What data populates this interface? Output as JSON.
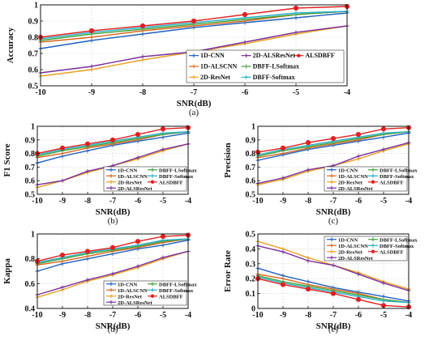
{
  "chart_data": [
    {
      "type": "line",
      "panel_label": "(a)",
      "xlabel": "SNR(dB)",
      "ylabel": "Accuracy",
      "x": [
        -10,
        -9,
        -8,
        -7,
        -6,
        -5,
        -4
      ],
      "xlim": [
        -10,
        -4
      ],
      "ylim": [
        0.5,
        1
      ],
      "yticks": [
        0.5,
        0.6,
        0.7,
        0.8,
        0.9,
        1
      ],
      "ytick_labels": [
        "0.5",
        "0.6",
        "0.7",
        "0.8",
        "0.9",
        "1"
      ],
      "grid": true,
      "legend_position": "lower-right",
      "series": [
        {
          "name": "1D-CNN",
          "color": "#1f5fbf",
          "marker": "plus",
          "values": [
            0.73,
            0.78,
            0.82,
            0.86,
            0.89,
            0.92,
            0.95
          ]
        },
        {
          "name": "1D-ALSCNN",
          "color": "#d9641e",
          "marker": "plus",
          "values": [
            0.77,
            0.8,
            0.84,
            0.87,
            0.9,
            0.94,
            0.96
          ]
        },
        {
          "name": "2D-ResNet",
          "color": "#e8a020",
          "marker": "plus",
          "values": [
            0.56,
            0.6,
            0.66,
            0.71,
            0.76,
            0.82,
            0.87
          ]
        },
        {
          "name": "2D-ALSResNet",
          "color": "#7a2f9e",
          "marker": "plus",
          "values": [
            0.58,
            0.62,
            0.68,
            0.71,
            0.77,
            0.83,
            0.87
          ]
        },
        {
          "name": "DBFF-LSoftmax",
          "color": "#3fa23a",
          "marker": "plus",
          "values": [
            0.78,
            0.82,
            0.85,
            0.88,
            0.91,
            0.94,
            0.96
          ]
        },
        {
          "name": "DBFF-Softmax",
          "color": "#2ab0c8",
          "marker": "plus",
          "values": [
            0.79,
            0.83,
            0.86,
            0.89,
            0.92,
            0.95,
            0.96
          ]
        },
        {
          "name": "ALSDBFF",
          "color": "#e02020",
          "marker": "dot",
          "values": [
            0.8,
            0.84,
            0.87,
            0.9,
            0.94,
            0.98,
            0.99
          ]
        }
      ]
    },
    {
      "type": "line",
      "panel_label": "(b)",
      "xlabel": "SNR(dB)",
      "ylabel": "F1 Score",
      "x": [
        -10,
        -9,
        -8,
        -7,
        -6,
        -5,
        -4
      ],
      "xlim": [
        -10,
        -4
      ],
      "ylim": [
        0.5,
        1
      ],
      "yticks": [
        0.5,
        0.6,
        0.7,
        0.8,
        0.9,
        1
      ],
      "ytick_labels": [
        "0.5",
        "0.6",
        "0.7",
        "0.8",
        "0.9",
        "1"
      ],
      "grid": true,
      "legend_position": "lower-right",
      "series": [
        {
          "name": "1D-CNN",
          "color": "#1f5fbf",
          "marker": "plus",
          "values": [
            0.73,
            0.78,
            0.82,
            0.86,
            0.89,
            0.92,
            0.95
          ]
        },
        {
          "name": "1D-ALSCNN",
          "color": "#d9641e",
          "marker": "plus",
          "values": [
            0.77,
            0.8,
            0.84,
            0.87,
            0.9,
            0.94,
            0.96
          ]
        },
        {
          "name": "2D-ResNet",
          "color": "#e8a020",
          "marker": "plus",
          "values": [
            0.55,
            0.6,
            0.66,
            0.71,
            0.76,
            0.82,
            0.87
          ]
        },
        {
          "name": "2D-ALSResNet",
          "color": "#7a2f9e",
          "marker": "plus",
          "values": [
            0.57,
            0.6,
            0.67,
            0.71,
            0.77,
            0.83,
            0.87
          ]
        },
        {
          "name": "DBFF-LSoftmax",
          "color": "#3fa23a",
          "marker": "plus",
          "values": [
            0.78,
            0.82,
            0.85,
            0.88,
            0.91,
            0.94,
            0.96
          ]
        },
        {
          "name": "DBFF-Softmax",
          "color": "#2ab0c8",
          "marker": "plus",
          "values": [
            0.79,
            0.83,
            0.86,
            0.89,
            0.92,
            0.95,
            0.96
          ]
        },
        {
          "name": "ALSDBFF",
          "color": "#e02020",
          "marker": "dot",
          "values": [
            0.8,
            0.84,
            0.87,
            0.9,
            0.94,
            0.98,
            0.99
          ]
        }
      ]
    },
    {
      "type": "line",
      "panel_label": "(c)",
      "xlabel": "SNR(dB)",
      "ylabel": "Precision",
      "x": [
        -10,
        -9,
        -8,
        -7,
        -6,
        -5,
        -4
      ],
      "xlim": [
        -10,
        -4
      ],
      "ylim": [
        0.5,
        1
      ],
      "yticks": [
        0.5,
        0.6,
        0.7,
        0.8,
        0.9,
        1
      ],
      "ytick_labels": [
        "0.5",
        "0.6",
        "0.7",
        "0.8",
        "0.9",
        "1"
      ],
      "grid": true,
      "legend_position": "lower-right",
      "series": [
        {
          "name": "1D-CNN",
          "color": "#1f5fbf",
          "marker": "plus",
          "values": [
            0.75,
            0.79,
            0.83,
            0.86,
            0.89,
            0.92,
            0.95
          ]
        },
        {
          "name": "1D-ALSCNN",
          "color": "#d9641e",
          "marker": "plus",
          "values": [
            0.77,
            0.8,
            0.84,
            0.87,
            0.9,
            0.94,
            0.96
          ]
        },
        {
          "name": "2D-ResNet",
          "color": "#e8a020",
          "marker": "plus",
          "values": [
            0.57,
            0.61,
            0.67,
            0.71,
            0.76,
            0.82,
            0.87
          ]
        },
        {
          "name": "2D-ALSResNet",
          "color": "#7a2f9e",
          "marker": "plus",
          "values": [
            0.58,
            0.62,
            0.68,
            0.71,
            0.78,
            0.83,
            0.88
          ]
        },
        {
          "name": "DBFF-LSoftmax",
          "color": "#3fa23a",
          "marker": "plus",
          "values": [
            0.78,
            0.82,
            0.85,
            0.88,
            0.91,
            0.94,
            0.96
          ]
        },
        {
          "name": "DBFF-Softmax",
          "color": "#2ab0c8",
          "marker": "plus",
          "values": [
            0.79,
            0.83,
            0.86,
            0.89,
            0.92,
            0.95,
            0.96
          ]
        },
        {
          "name": "ALSDBFF",
          "color": "#e02020",
          "marker": "dot",
          "values": [
            0.81,
            0.84,
            0.88,
            0.91,
            0.94,
            0.98,
            0.99
          ]
        }
      ]
    },
    {
      "type": "line",
      "panel_label": "(d)",
      "xlabel": "SNR(dB)",
      "ylabel": "Kappa",
      "x": [
        -10,
        -9,
        -8,
        -7,
        -6,
        -5,
        -4
      ],
      "xlim": [
        -10,
        -4
      ],
      "ylim": [
        0.4,
        1
      ],
      "yticks": [
        0.4,
        0.6,
        0.8,
        1
      ],
      "ytick_labels": [
        "0.4",
        "0.6",
        "0.8",
        "1"
      ],
      "grid": true,
      "legend_position": "lower-right",
      "series": [
        {
          "name": "1D-CNN",
          "color": "#1f5fbf",
          "marker": "plus",
          "values": [
            0.7,
            0.76,
            0.8,
            0.84,
            0.88,
            0.91,
            0.95
          ]
        },
        {
          "name": "1D-ALSCNN",
          "color": "#d9641e",
          "marker": "plus",
          "values": [
            0.75,
            0.78,
            0.82,
            0.86,
            0.89,
            0.93,
            0.96
          ]
        },
        {
          "name": "2D-ResNet",
          "color": "#e8a020",
          "marker": "plus",
          "values": [
            0.49,
            0.55,
            0.62,
            0.67,
            0.73,
            0.8,
            0.86
          ]
        },
        {
          "name": "2D-ALSResNet",
          "color": "#7a2f9e",
          "marker": "plus",
          "values": [
            0.51,
            0.57,
            0.63,
            0.68,
            0.74,
            0.81,
            0.86
          ]
        },
        {
          "name": "DBFF-LSoftmax",
          "color": "#3fa23a",
          "marker": "plus",
          "values": [
            0.76,
            0.8,
            0.84,
            0.87,
            0.9,
            0.94,
            0.96
          ]
        },
        {
          "name": "DBFF-Softmax",
          "color": "#2ab0c8",
          "marker": "plus",
          "values": [
            0.77,
            0.81,
            0.85,
            0.88,
            0.91,
            0.95,
            0.96
          ]
        },
        {
          "name": "ALSDBFF",
          "color": "#e02020",
          "marker": "dot",
          "values": [
            0.78,
            0.83,
            0.86,
            0.89,
            0.94,
            0.98,
            0.99
          ]
        }
      ]
    },
    {
      "type": "line",
      "panel_label": "(e)",
      "xlabel": "SNR(dB)",
      "ylabel": "Error Rate",
      "x": [
        -10,
        -9,
        -8,
        -7,
        -6,
        -5,
        -4
      ],
      "xlim": [
        -10,
        -4
      ],
      "ylim": [
        0,
        0.5
      ],
      "yticks": [
        0,
        0.1,
        0.2,
        0.3,
        0.4,
        0.5
      ],
      "ytick_labels": [
        "0",
        "0.1",
        "0.2",
        "0.3",
        "0.4",
        "0.5"
      ],
      "grid": true,
      "legend_position": "top-right",
      "series": [
        {
          "name": "1D-CNN",
          "color": "#1f5fbf",
          "marker": "plus",
          "values": [
            0.27,
            0.22,
            0.18,
            0.14,
            0.11,
            0.08,
            0.05
          ]
        },
        {
          "name": "1D-ALSCNN",
          "color": "#d9641e",
          "marker": "plus",
          "values": [
            0.23,
            0.2,
            0.16,
            0.13,
            0.1,
            0.06,
            0.04
          ]
        },
        {
          "name": "2D-ResNet",
          "color": "#e8a020",
          "marker": "plus",
          "values": [
            0.45,
            0.4,
            0.34,
            0.29,
            0.24,
            0.18,
            0.13
          ]
        },
        {
          "name": "2D-ALSResNet",
          "color": "#7a2f9e",
          "marker": "plus",
          "values": [
            0.42,
            0.38,
            0.32,
            0.29,
            0.23,
            0.17,
            0.12
          ]
        },
        {
          "name": "DBFF-LSoftmax",
          "color": "#3fa23a",
          "marker": "plus",
          "values": [
            0.22,
            0.18,
            0.15,
            0.12,
            0.09,
            0.06,
            0.04
          ]
        },
        {
          "name": "DBFF-Softmax",
          "color": "#2ab0c8",
          "marker": "plus",
          "values": [
            0.21,
            0.17,
            0.14,
            0.11,
            0.08,
            0.05,
            0.04
          ]
        },
        {
          "name": "ALSDBFF",
          "color": "#e02020",
          "marker": "dot",
          "values": [
            0.2,
            0.16,
            0.13,
            0.1,
            0.06,
            0.02,
            0.01
          ]
        }
      ]
    }
  ]
}
